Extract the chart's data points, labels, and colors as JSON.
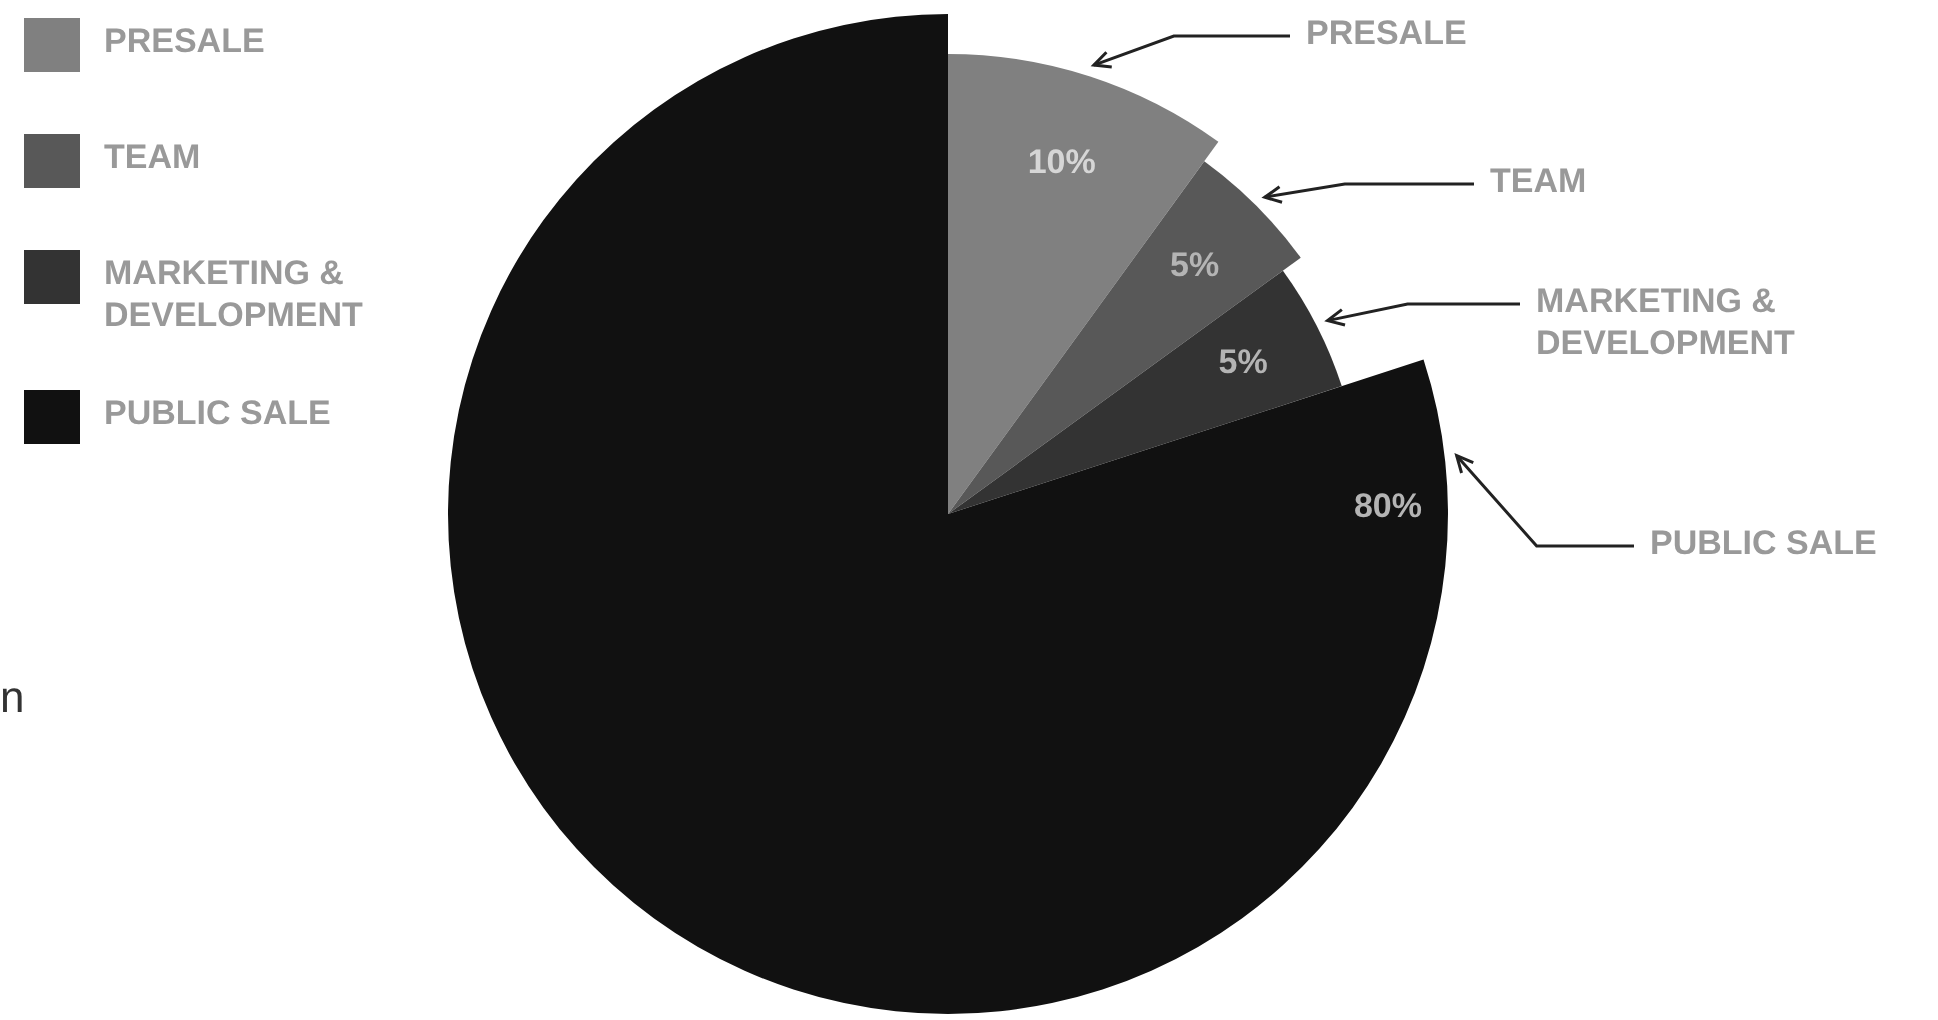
{
  "chart_data": {
    "type": "pie",
    "categories": [
      "PRESALE",
      "TEAM",
      "MARKETING & DEVELOPMENT",
      "PUBLIC SALE"
    ],
    "values": [
      10,
      5,
      5,
      80
    ],
    "colors": [
      "#808080",
      "#585858",
      "#333333",
      "#111111"
    ],
    "value_labels": [
      "10%",
      "5%",
      "5%",
      "80%"
    ],
    "legend": "top left",
    "annotations": [
      "n"
    ]
  }
}
